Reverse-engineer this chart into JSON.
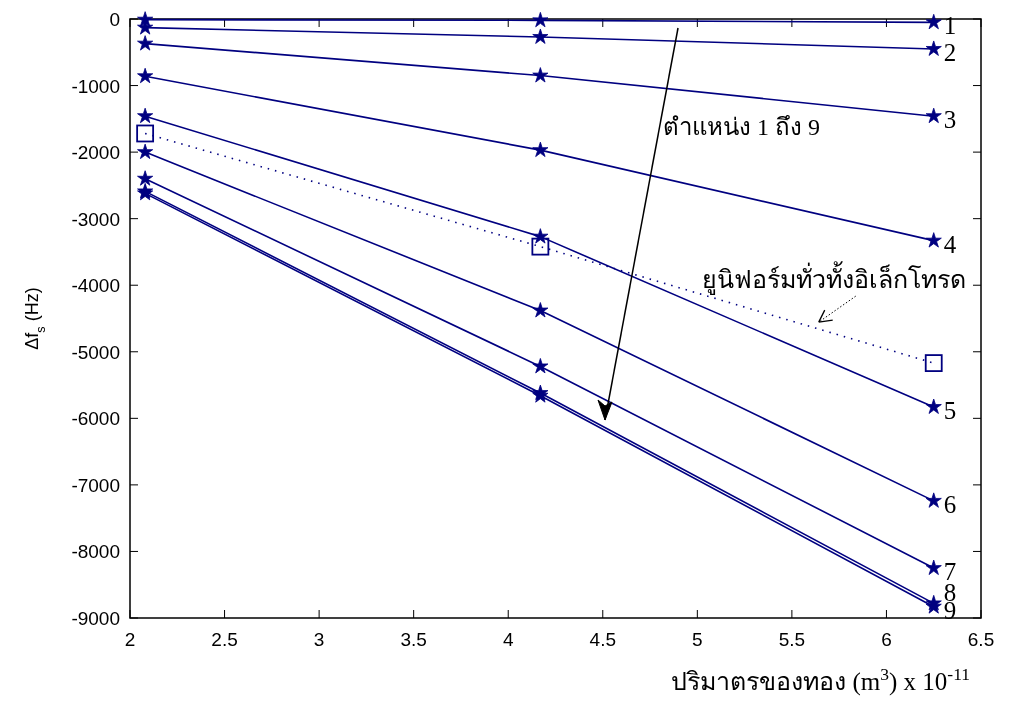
{
  "chart_data": {
    "type": "line",
    "xlabel": "ปริมาตรของทอง (m$^{3}$) x 10$^{-11}$",
    "ylabel": "Δf$_{s}$ (Hz)",
    "x": [
      2.08,
      4.17,
      6.25
    ],
    "xlim": [
      2,
      6.5
    ],
    "xticks": [
      2,
      2.5,
      3,
      3.5,
      4,
      4.5,
      5,
      5.5,
      6,
      6.5
    ],
    "ylim": [
      -9000,
      0
    ],
    "yticks": [
      -9000,
      -8000,
      -7000,
      -6000,
      -5000,
      -4000,
      -3000,
      -2000,
      -1000,
      0
    ],
    "grid": false,
    "marker": "star",
    "line_style": "solid",
    "annotations": [
      "ตำแหน่ง 1 ถึง 9"
    ],
    "series": [
      {
        "name": "1",
        "color": "#000080",
        "values": [
          -10,
          -20,
          -50
        ]
      },
      {
        "name": "2",
        "color": "#000080",
        "values": [
          -130,
          -270,
          -450
        ]
      },
      {
        "name": "3",
        "color": "#000080",
        "values": [
          -370,
          -850,
          -1460
        ]
      },
      {
        "name": "4",
        "color": "#000080",
        "values": [
          -860,
          -1970,
          -3330
        ]
      },
      {
        "name": "5",
        "color": "#000080",
        "values": [
          -1460,
          -3270,
          -5830
        ]
      },
      {
        "name": "6",
        "color": "#000080",
        "values": [
          -2000,
          -4380,
          -7240
        ]
      },
      {
        "name": "7",
        "color": "#000080",
        "values": [
          -2400,
          -5220,
          -8250
        ]
      },
      {
        "name": "8",
        "color": "#000080",
        "values": [
          -2590,
          -5620,
          -8780
        ]
      },
      {
        "name": "9",
        "color": "#000080",
        "values": [
          -2620,
          -5660,
          -8830
        ]
      },
      {
        "name": "ยูนิฟอร์มทั่วทั้งอิเล็กโทรด",
        "color": "#000080",
        "values": [
          -1720,
          -3420,
          -5170
        ],
        "marker": "square",
        "line_style": "dotted"
      }
    ]
  }
}
